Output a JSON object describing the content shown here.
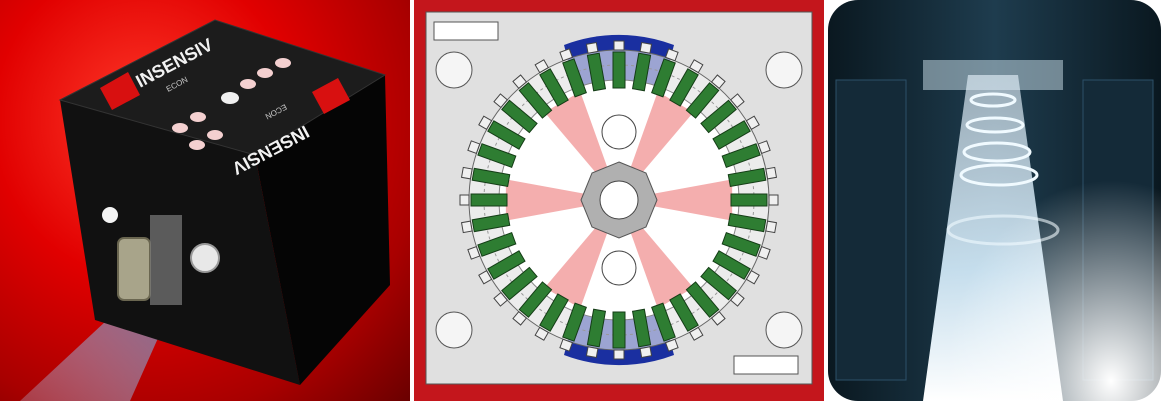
{
  "panels": [
    {
      "name": "sensor-box-photo",
      "brand_text": "INSENSIV",
      "sub_text": "ECON",
      "colors": {
        "background": "#e10000",
        "box": "#0e0e0e",
        "logo": "#d81010"
      }
    },
    {
      "name": "sensor-ring-diagram",
      "colors": {
        "frame": "#c4161c",
        "plate": "#d9d9d9",
        "module": "#2e7d32",
        "beam": "#f2a0a0",
        "blue": "#1a2fa0"
      }
    },
    {
      "name": "conveyor-scan-photo",
      "colors": {
        "dark": "#0c1a24",
        "light": "#e8f6ff"
      }
    }
  ]
}
